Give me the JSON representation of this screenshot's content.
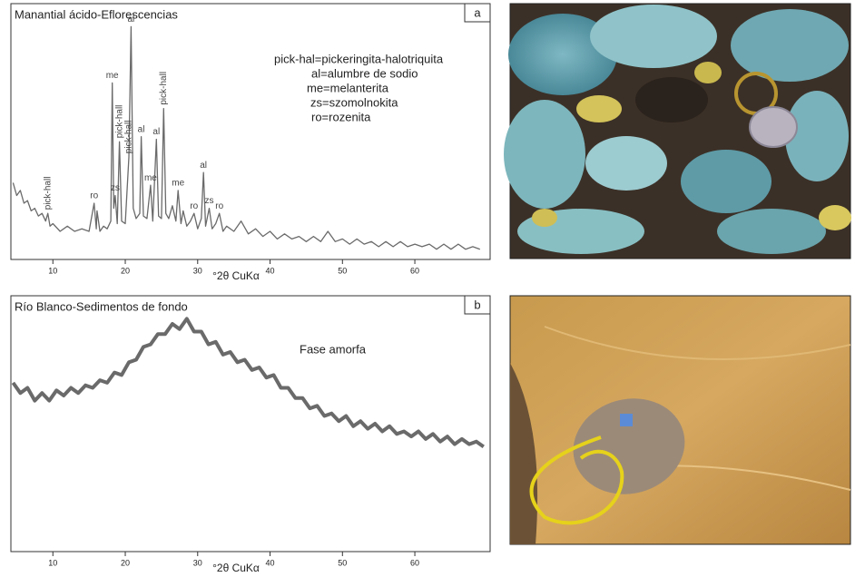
{
  "chart_data": [
    {
      "type": "line",
      "title": "Manantial ácido-Eflorescencias",
      "panel_label": "a",
      "xlabel": "°2θ CuKα",
      "xlim": [
        4.2,
        70.4
      ],
      "ylim": [
        0,
        100
      ],
      "xticks": [
        10,
        20,
        30,
        40,
        50,
        60
      ],
      "color": "#6a6a6a",
      "x": [
        4.5,
        5,
        5.5,
        6,
        6.5,
        7,
        7.5,
        8,
        8.5,
        9,
        9.3,
        9.6,
        10,
        11,
        12,
        13,
        14,
        15,
        15.7,
        16,
        16.1,
        16.5,
        17,
        17.5,
        18,
        18.2,
        18.4,
        18.6,
        18.9,
        19.2,
        19.5,
        20,
        20.5,
        20.8,
        21.1,
        21.5,
        22,
        22.2,
        22.5,
        23,
        23.5,
        23.8,
        24.3,
        24.6,
        25,
        25.3,
        25.6,
        26,
        26.5,
        27,
        27.3,
        27.7,
        28,
        28.5,
        29,
        29.5,
        30,
        30.5,
        30.8,
        31.1,
        31.6,
        32,
        32.5,
        33,
        33.5,
        34,
        35,
        36,
        37,
        38,
        39,
        40,
        41,
        42,
        43,
        44,
        45,
        46,
        47,
        48,
        49,
        50,
        51,
        52,
        53,
        54,
        55,
        56,
        57,
        58,
        59,
        60,
        61,
        62,
        63,
        64,
        65,
        66,
        67,
        68,
        69
      ],
      "values": [
        30,
        25,
        27,
        22,
        23,
        19,
        20,
        17,
        18,
        15,
        18,
        13,
        14,
        11,
        13,
        11,
        12,
        11,
        22,
        12,
        19,
        11,
        13,
        12,
        15,
        69,
        20,
        25,
        14,
        46,
        15,
        14,
        40,
        91,
        20,
        16,
        18,
        48,
        17,
        16,
        29,
        15,
        47,
        17,
        16,
        59,
        18,
        16,
        21,
        15,
        27,
        14,
        19,
        13,
        15,
        18,
        12,
        16,
        34,
        13,
        20,
        12,
        14,
        18,
        11,
        13,
        11,
        15,
        10,
        12,
        9,
        11,
        8,
        10,
        8,
        9,
        7,
        9,
        7,
        11,
        7,
        8,
        6,
        8,
        6,
        7,
        5,
        7,
        5,
        7,
        5,
        6,
        5,
        6,
        4,
        6,
        4,
        6,
        4,
        5,
        4
      ],
      "annotations": [
        {
          "text": "pick-hall",
          "x": 9.3,
          "rotated": true
        },
        {
          "text": "ro",
          "x": 15.7,
          "rotated": false
        },
        {
          "text": "me",
          "x": 18.2,
          "rotated": false
        },
        {
          "text": "zs",
          "x": 18.6,
          "rotated": false
        },
        {
          "text": "pick-hall",
          "x": 19.2,
          "rotated": true
        },
        {
          "text": "pick-hall",
          "x": 20.5,
          "rotated": true
        },
        {
          "text": "al",
          "x": 20.8,
          "rotated": false
        },
        {
          "text": "al",
          "x": 22.2,
          "rotated": false
        },
        {
          "text": "me",
          "x": 23.5,
          "rotated": false
        },
        {
          "text": "al",
          "x": 24.3,
          "rotated": false
        },
        {
          "text": "pick-hall",
          "x": 25.3,
          "rotated": true
        },
        {
          "text": "me",
          "x": 27.3,
          "rotated": false
        },
        {
          "text": "ro",
          "x": 29.5,
          "rotated": false
        },
        {
          "text": "al",
          "x": 30.8,
          "rotated": false
        },
        {
          "text": "zs",
          "x": 31.6,
          "rotated": false
        },
        {
          "text": "ro",
          "x": 33,
          "rotated": false
        }
      ],
      "legend_text": [
        "pick-hal=pickeringita-halotriquita",
        "al=alumbre de sodio",
        "me=melanterita",
        "zs=szomolnokita",
        "ro=rozenita"
      ]
    },
    {
      "type": "line",
      "title": "Río Blanco-Sedimentos de fondo",
      "panel_label": "b",
      "xlabel": "°2θ CuKα",
      "xlim": [
        4.2,
        70.4
      ],
      "ylim": [
        0,
        100
      ],
      "xticks": [
        10,
        20,
        30,
        40,
        50,
        60
      ],
      "color": "#6a6a6a",
      "x": [
        4.5,
        5.5,
        6.5,
        7.5,
        8.5,
        9.5,
        10.5,
        11.5,
        12.5,
        13.5,
        14.5,
        15.5,
        16.5,
        17.5,
        18.5,
        19.5,
        20.5,
        21.5,
        22.5,
        23.5,
        24.5,
        25.5,
        26.5,
        27.5,
        28.5,
        29.5,
        30.5,
        31.5,
        32.5,
        33.5,
        34.5,
        35.5,
        36.5,
        37.5,
        38.5,
        39.5,
        40.5,
        41.5,
        42.5,
        43.5,
        44.5,
        45.5,
        46.5,
        47.5,
        48.5,
        49.5,
        50.5,
        51.5,
        52.5,
        53.5,
        54.5,
        55.5,
        56.5,
        57.5,
        58.5,
        59.5,
        60.5,
        61.5,
        62.5,
        63.5,
        64.5,
        65.5,
        66.5,
        67.5,
        68.5,
        69.5
      ],
      "values": [
        66,
        62,
        64,
        59,
        62,
        59,
        63,
        61,
        64,
        62,
        65,
        64,
        67,
        66,
        70,
        69,
        74,
        75,
        80,
        81,
        85,
        85,
        89,
        87,
        91,
        86,
        86,
        81,
        82,
        77,
        78,
        74,
        75,
        71,
        72,
        68,
        69,
        64,
        64,
        60,
        60,
        56,
        57,
        53,
        54,
        51,
        53,
        49,
        51,
        48,
        50,
        47,
        49,
        46,
        47,
        45,
        47,
        44,
        46,
        43,
        45,
        42,
        44,
        42,
        43,
        41
      ],
      "note": "Fase amorfa"
    }
  ]
}
